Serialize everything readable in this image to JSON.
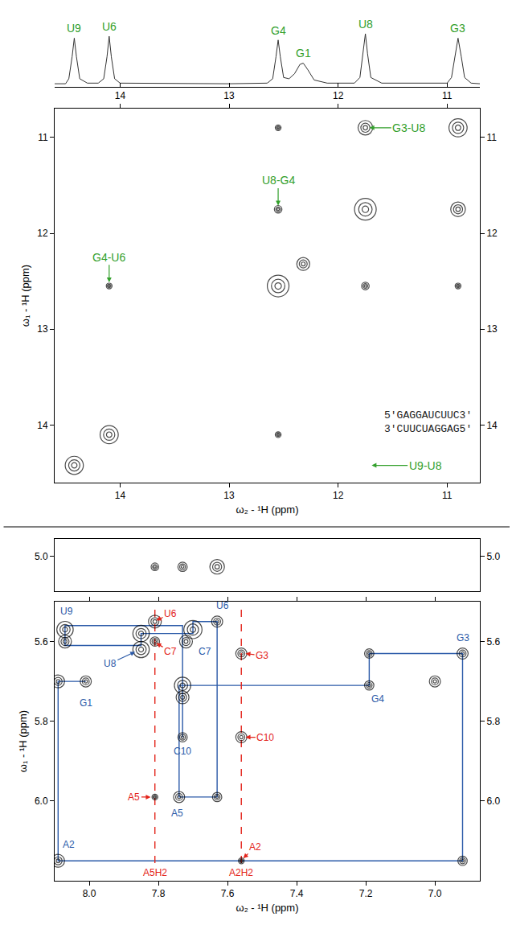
{
  "chart_data": [
    {
      "type": "line",
      "x": [
        14.6,
        14.5,
        14.47,
        14.44,
        14.42,
        14.4,
        14.37,
        14.3,
        14.2,
        14.15,
        14.12,
        14.1,
        14.08,
        14.05,
        14.0,
        13.0,
        12.65,
        12.6,
        12.57,
        12.55,
        12.53,
        12.5,
        12.45,
        12.4,
        12.35,
        12.32,
        12.28,
        12.22,
        12.1,
        11.85,
        11.8,
        11.77,
        11.75,
        11.73,
        11.7,
        11.6,
        11.0,
        10.96,
        10.93,
        10.9,
        10.87,
        10.84,
        10.78,
        10.7
      ],
      "values": [
        2,
        2,
        10,
        45,
        75,
        45,
        10,
        3,
        3,
        10,
        45,
        78,
        45,
        10,
        3,
        2,
        3,
        10,
        45,
        72,
        45,
        12,
        10,
        18,
        33,
        35,
        25,
        8,
        3,
        3,
        12,
        50,
        82,
        50,
        12,
        3,
        3,
        12,
        45,
        75,
        45,
        12,
        3,
        2
      ],
      "color": "#333333",
      "xlim": [
        14.6,
        10.7
      ],
      "xticks": [
        14,
        13,
        12,
        11
      ],
      "ylim": [
        -3,
        100
      ],
      "tick_labels": "x",
      "annotations": [
        {
          "text": "U9",
          "x": 14.42,
          "y": 75,
          "color": "#33a02c"
        },
        {
          "text": "U6",
          "x": 14.1,
          "y": 78,
          "color": "#33a02c"
        },
        {
          "text": "G4",
          "x": 12.55,
          "y": 72,
          "color": "#33a02c"
        },
        {
          "text": "G1",
          "x": 12.32,
          "y": 35,
          "color": "#33a02c"
        },
        {
          "text": "U8",
          "x": 11.75,
          "y": 82,
          "color": "#33a02c"
        },
        {
          "text": "G3",
          "x": 10.9,
          "y": 75,
          "color": "#33a02c"
        }
      ]
    },
    {
      "type": "scatter",
      "xlabel": "ω₂ - ¹H (ppm)",
      "ylabel": "ω₁ - ¹H (ppm)",
      "x": [
        14.42,
        14.1,
        12.55,
        12.32,
        11.75,
        10.9,
        11.75,
        10.9,
        12.55,
        11.75,
        10.9,
        12.55,
        14.1,
        12.55
      ],
      "y": [
        14.42,
        14.1,
        12.55,
        12.32,
        11.75,
        10.9,
        10.9,
        11.75,
        11.75,
        12.55,
        12.55,
        10.9,
        12.55,
        14.1
      ],
      "intensity": [
        8,
        8,
        10,
        5,
        10,
        8,
        6,
        6,
        2,
        2,
        1,
        1,
        1,
        1
      ],
      "color": "#000000",
      "xlim": [
        14.6,
        10.7
      ],
      "xticks": [
        14,
        13,
        12,
        11
      ],
      "ylim": [
        14.6,
        10.7
      ],
      "yticks": [
        11,
        12,
        13,
        14
      ],
      "annotations": [
        {
          "text": "G3-U8",
          "x": 11.35,
          "y": 10.9,
          "arrow_to": [
            11.72,
            10.9
          ],
          "color": "#33a02c"
        },
        {
          "text": "U8-G4",
          "x": 12.55,
          "y": 11.45,
          "arrow_to": [
            12.55,
            11.72
          ],
          "color": "#33a02c"
        },
        {
          "text": "G4-U6",
          "x": 14.1,
          "y": 12.25,
          "arrow_to": [
            14.1,
            12.52
          ],
          "color": "#33a02c"
        },
        {
          "text": "U9-U8",
          "x": 11.2,
          "y": 14.42,
          "arrow_to": [
            11.7,
            14.42
          ],
          "color": "#33a02c"
        }
      ],
      "sequence": [
        "5'GAGGAUCUUC3'",
        "3'CUUCUAGGAG5'"
      ]
    },
    {
      "type": "scatter",
      "x": [
        7.81,
        7.73,
        7.63
      ],
      "y": [
        5.03,
        5.03,
        5.03
      ],
      "intensity": [
        2,
        3,
        6
      ],
      "color": "#000000",
      "xlim": [
        8.1,
        6.87
      ],
      "ylim": [
        5.1,
        4.95
      ],
      "yticks": [
        {
          "value": 5,
          "label": "5.0"
        }
      ],
      "tick_labels": "y"
    },
    {
      "type": "scatter",
      "xlabel": "ω₂ - ¹H (ppm)",
      "ylabel": "ω₁ - ¹H (ppm)",
      "x": [
        8.09,
        8.09,
        8.07,
        8.07,
        8.01,
        7.85,
        7.85,
        7.81,
        7.81,
        7.81,
        7.73,
        7.73,
        7.74,
        7.73,
        7.7,
        7.72,
        7.63,
        7.63,
        7.56,
        7.56,
        7.56,
        7.19,
        7.19,
        7.0,
        6.92,
        6.92
      ],
      "y": [
        6.15,
        5.7,
        5.57,
        5.6,
        5.7,
        5.58,
        5.62,
        5.55,
        5.6,
        5.99,
        5.71,
        5.74,
        5.99,
        5.84,
        5.57,
        5.6,
        5.55,
        5.99,
        5.63,
        5.84,
        6.15,
        5.63,
        5.71,
        5.7,
        5.63,
        6.15
      ],
      "intensity": [
        5,
        5,
        7,
        5,
        4,
        7,
        7,
        5,
        3,
        1,
        7,
        5,
        4,
        3,
        8,
        5,
        4,
        3,
        4,
        4,
        1,
        3,
        3,
        4,
        4,
        3
      ],
      "color": "#000000",
      "xlim": [
        8.1,
        6.87
      ],
      "xticks": [
        {
          "value": 8,
          "label": "8.0"
        },
        7.8,
        7.6,
        7.4,
        7.2,
        {
          "value": 7,
          "label": "7.0"
        }
      ],
      "ylim": [
        6.2,
        5.5
      ],
      "yticks": [
        5.6,
        5.8,
        {
          "value": 6,
          "label": "6.0"
        }
      ],
      "lines": [
        {
          "x": [
            8.01,
            8.09,
            8.09,
            6.92,
            6.92,
            7.19,
            7.19,
            7.74,
            7.74,
            7.63,
            7.63,
            7.7,
            7.7,
            7.85,
            7.85,
            8.07,
            8.07,
            7.73,
            7.73
          ],
          "y": [
            5.7,
            5.7,
            6.15,
            6.15,
            5.63,
            5.63,
            5.71,
            5.71,
            5.99,
            5.99,
            5.55,
            5.55,
            5.58,
            5.58,
            5.61,
            5.61,
            5.56,
            5.56,
            5.84
          ],
          "color": "#2b5aa8",
          "line_style": "solid"
        },
        {
          "x": [
            7.81,
            7.81
          ],
          "y": [
            5.52,
            6.165
          ],
          "color": "#e3241b",
          "line_style": "dashed"
        },
        {
          "x": [
            7.56,
            7.56
          ],
          "y": [
            5.52,
            6.165
          ],
          "color": "#e3241b",
          "line_style": "dashed"
        }
      ],
      "annotations": [
        {
          "text": "U9",
          "x": 8.065,
          "y": 5.525,
          "color": "#2b5aa8"
        },
        {
          "text": "G1",
          "x": 8.01,
          "y": 5.755,
          "color": "#2b5aa8"
        },
        {
          "text": "A2",
          "x": 8.06,
          "y": 6.11,
          "color": "#2b5aa8"
        },
        {
          "text": "U8",
          "x": 7.94,
          "y": 5.655,
          "arrow_to": [
            7.865,
            5.625
          ],
          "color": "#2b5aa8"
        },
        {
          "text": "C7",
          "x": 7.665,
          "y": 5.625,
          "color": "#2b5aa8"
        },
        {
          "text": "U6",
          "x": 7.615,
          "y": 5.51,
          "color": "#2b5aa8"
        },
        {
          "text": "C10",
          "x": 7.73,
          "y": 5.875,
          "color": "#2b5aa8"
        },
        {
          "text": "A5",
          "x": 7.745,
          "y": 6.03,
          "color": "#2b5aa8"
        },
        {
          "text": "G4",
          "x": 7.165,
          "y": 5.745,
          "color": "#2b5aa8"
        },
        {
          "text": "G3",
          "x": 6.92,
          "y": 5.59,
          "color": "#2b5aa8"
        },
        {
          "text": "U6",
          "x": 7.765,
          "y": 5.53,
          "arrow_to": [
            7.808,
            5.548
          ],
          "color": "#e3241b"
        },
        {
          "text": "C7",
          "x": 7.765,
          "y": 5.625,
          "arrow_to": [
            7.808,
            5.603
          ],
          "color": "#e3241b"
        },
        {
          "text": "A5",
          "x": 7.87,
          "y": 5.99,
          "arrow_to": [
            7.82,
            5.99
          ],
          "color": "#e3241b"
        },
        {
          "text": "G3",
          "x": 7.5,
          "y": 5.635,
          "arrow_to": [
            7.55,
            5.63
          ],
          "color": "#e3241b"
        },
        {
          "text": "C10",
          "x": 7.49,
          "y": 5.84,
          "arrow_to": [
            7.55,
            5.84
          ],
          "color": "#e3241b"
        },
        {
          "text": "A2",
          "x": 7.52,
          "y": 6.115,
          "arrow_to": [
            7.556,
            6.145
          ],
          "color": "#e3241b"
        },
        {
          "text": "A5H2",
          "x": 7.81,
          "y": 6.18,
          "color": "#e3241b"
        },
        {
          "text": "A2H2",
          "x": 7.56,
          "y": 6.18,
          "color": "#e3241b"
        }
      ]
    }
  ]
}
